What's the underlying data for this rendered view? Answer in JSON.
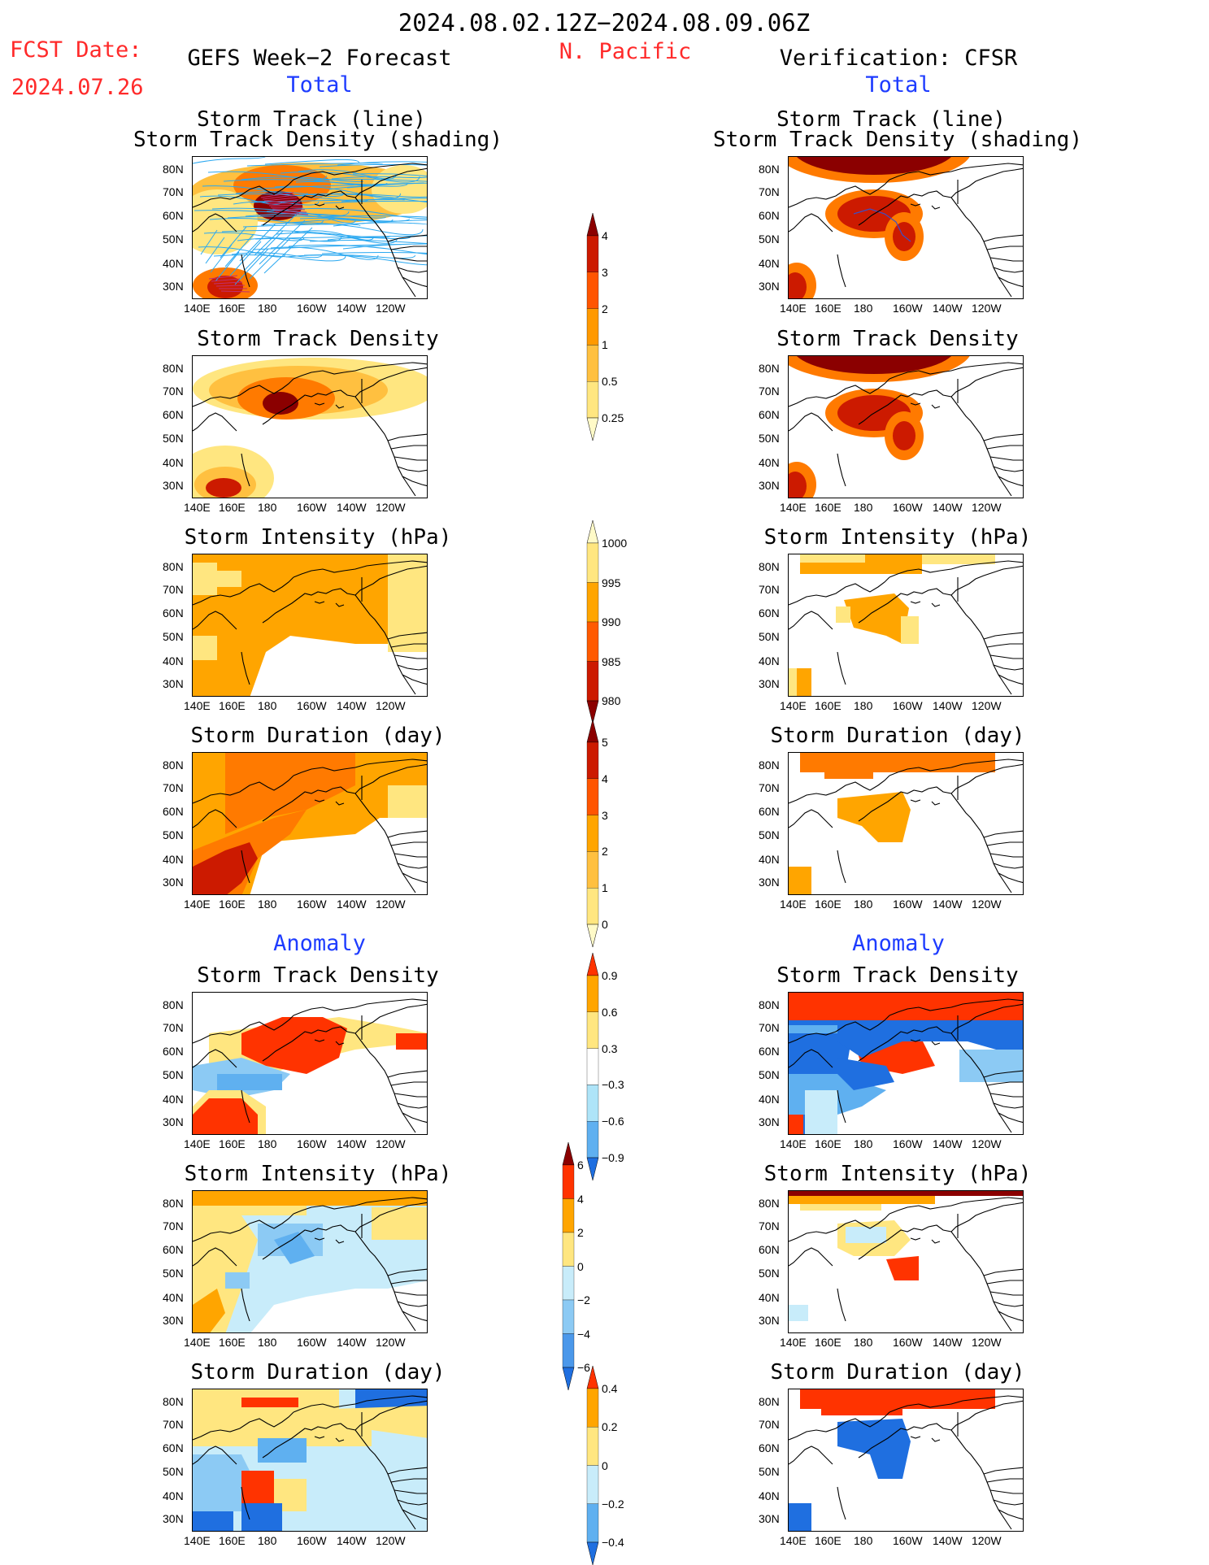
{
  "header": {
    "period": "2024.08.02.12Z−2024.08.09.06Z",
    "fcst_label": "FCST Date:",
    "fcst_date": "2024.07.26",
    "left_title": "GEFS Week−2 Forecast",
    "region": "N. Pacific",
    "right_title": "Verification: CFSR",
    "left_total": "Total",
    "right_total": "Total",
    "left_anomaly": "Anomaly",
    "right_anomaly": "Anomaly"
  },
  "panel_titles": {
    "track_line": "Storm Track (line)",
    "track_shading": "Storm Track Density (shading)",
    "density": "Storm Track Density",
    "intensity": "Storm Intensity (hPa)",
    "duration": "Storm Duration (day)"
  },
  "axes": {
    "lat_labels": [
      "80N",
      "70N",
      "60N",
      "50N",
      "40N",
      "30N"
    ],
    "lon_labels": [
      "140E",
      "160E",
      "180",
      "160W",
      "140W",
      "120W"
    ]
  },
  "colorbars": {
    "density": {
      "labels": [
        "4",
        "3",
        "2",
        "1",
        "0.5",
        "0.25"
      ],
      "colors": [
        "#8b0000",
        "#cc1a00",
        "#ff5500",
        "#ff9900",
        "#ffc040",
        "#ffe680",
        "#fffac8"
      ]
    },
    "intensity": {
      "labels": [
        "1000",
        "995",
        "990",
        "985",
        "980"
      ],
      "colors": [
        "#fffac8",
        "#ffe680",
        "#ffa500",
        "#ff5a00",
        "#cc1a00",
        "#8b0000"
      ]
    },
    "duration": {
      "labels": [
        "5",
        "4",
        "3",
        "2",
        "1",
        "0"
      ],
      "colors": [
        "#8b0000",
        "#cc1a00",
        "#ff5500",
        "#ffa500",
        "#ffc040",
        "#ffe680",
        "#fffac8"
      ]
    },
    "anom_density": {
      "labels": [
        "0.9",
        "0.6",
        "0.3",
        "−0.3",
        "−0.6",
        "−0.9"
      ],
      "colors": [
        "#ff3300",
        "#ffa500",
        "#ffe680",
        "#ffffff",
        "#aee4f8",
        "#5fb0f0",
        "#1f6fe0"
      ]
    },
    "anom_intensity": {
      "labels": [
        "6",
        "4",
        "2",
        "0",
        "−2",
        "−4",
        "−6"
      ],
      "colors": [
        "#8b0000",
        "#ff3300",
        "#ffa500",
        "#ffe680",
        "#c8ecfa",
        "#8ccaf4",
        "#4b98ea",
        "#1f6fe0"
      ]
    },
    "anom_duration": {
      "labels": [
        "0.4",
        "0.2",
        "0",
        "−0.2",
        "−0.4"
      ],
      "colors": [
        "#ff3300",
        "#ffa500",
        "#ffe680",
        "#c8ecfa",
        "#5fb0f0",
        "#1f6fe0"
      ]
    }
  }
}
